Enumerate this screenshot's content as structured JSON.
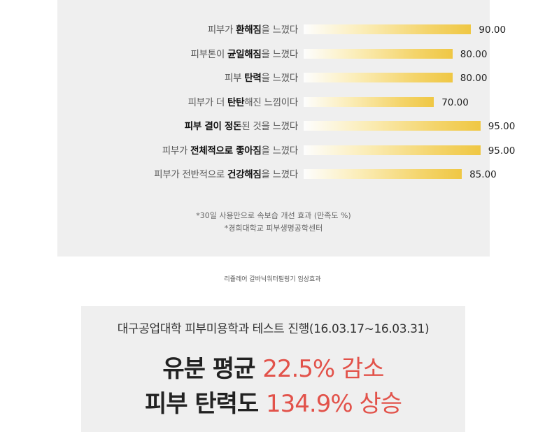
{
  "chart_data": {
    "type": "bar",
    "orientation": "horizontal",
    "categories": [
      "피부가 환해짐을 느꼈다",
      "피부톤이 균일해짐을 느꼈다",
      "피부 탄력을 느꼈다",
      "피부가 더 탄탄해진 느낌이다",
      "피부 결이 정돈된 것을 느꼈다",
      "피부가 전체적으로 좋아짐을 느꼈다",
      "피부가 전반적으로 건강해짐을 느꼈다"
    ],
    "label_parts": [
      [
        {
          "t": "피부가 ",
          "b": false
        },
        {
          "t": "환해짐",
          "b": true
        },
        {
          "t": "을 느꼈다",
          "b": false
        }
      ],
      [
        {
          "t": "피부톤이 ",
          "b": false
        },
        {
          "t": "균일해짐",
          "b": true
        },
        {
          "t": "을 느꼈다",
          "b": false
        }
      ],
      [
        {
          "t": "피부 ",
          "b": false
        },
        {
          "t": "탄력",
          "b": true
        },
        {
          "t": "을 느꼈다",
          "b": false
        }
      ],
      [
        {
          "t": "피부가 더 ",
          "b": false
        },
        {
          "t": "탄탄",
          "b": true
        },
        {
          "t": "해진 느낌이다",
          "b": false
        }
      ],
      [
        {
          "t": "피부 결이 정돈",
          "b": true
        },
        {
          "t": "된 것을 느꼈다",
          "b": false
        }
      ],
      [
        {
          "t": "피부가 ",
          "b": false
        },
        {
          "t": "전체적으로 좋아짐",
          "b": true
        },
        {
          "t": "을 느꼈다",
          "b": false
        }
      ],
      [
        {
          "t": "피부가 전반적으로 ",
          "b": false
        },
        {
          "t": "건강해짐",
          "b": true
        },
        {
          "t": "을 느꼈다",
          "b": false
        }
      ]
    ],
    "values": [
      90,
      80,
      80,
      70,
      95,
      95,
      85
    ],
    "value_labels": [
      "90.00",
      "80.00",
      "80.00",
      "70.00",
      "95.00",
      "95.00",
      "85.00"
    ],
    "xlim": [
      0,
      100
    ],
    "bar_color_start": "#fbf0c8",
    "bar_color_end": "#efc744",
    "grid": false,
    "legend": "none"
  },
  "notes": {
    "line1": "*30일 사용만으로 속보습 개선 효과 (만족도 %)",
    "line2": "*경희대학교 피부생명공학센터"
  },
  "caption": "리쥴레어 갈바닉워터필링기 임상효과",
  "test": {
    "subtitle": "대구공업대학 피부미용학과 테스트 진행(16.03.17~16.03.31)",
    "line1_prefix": "유분 평균 ",
    "line1_value": "22.5% 감소",
    "line2_prefix": "피부 탄력도 ",
    "line2_value": "134.9% 상승",
    "highlight_color": "#e2524a"
  }
}
